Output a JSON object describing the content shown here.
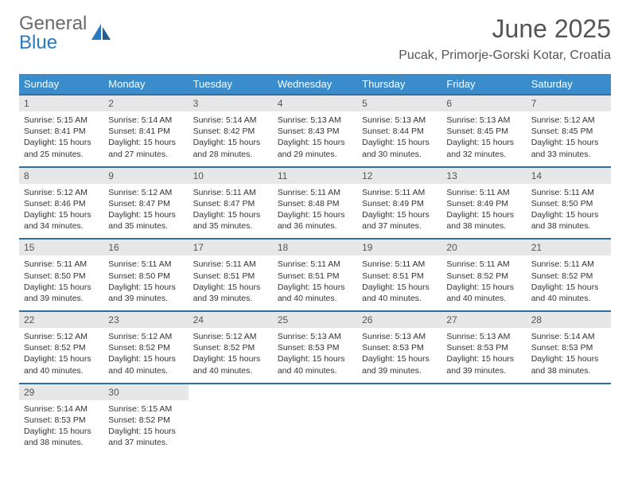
{
  "logo": {
    "general": "General",
    "blue": "Blue"
  },
  "title": "June 2025",
  "location": "Pucak, Primorje-Gorski Kotar, Croatia",
  "columns": [
    "Sunday",
    "Monday",
    "Tuesday",
    "Wednesday",
    "Thursday",
    "Friday",
    "Saturday"
  ],
  "colors": {
    "header_bg": "#3b8ccb",
    "header_text": "#ffffff",
    "row_border": "#2d6fa3",
    "daynum_bg": "#e7e7e7",
    "body_text": "#333333",
    "title_text": "#555555",
    "logo_gray": "#6a6a6a",
    "logo_blue": "#2a7ac0",
    "background": "#ffffff"
  },
  "typography": {
    "month_title_pt": 32,
    "location_pt": 16,
    "column_header_pt": 13,
    "daynum_pt": 12,
    "cell_body_pt": 10.5,
    "logo_pt": 24
  },
  "weeks": [
    [
      {
        "n": "1",
        "sunrise": "5:15 AM",
        "sunset": "8:41 PM",
        "daylight": "15 hours and 25 minutes."
      },
      {
        "n": "2",
        "sunrise": "5:14 AM",
        "sunset": "8:41 PM",
        "daylight": "15 hours and 27 minutes."
      },
      {
        "n": "3",
        "sunrise": "5:14 AM",
        "sunset": "8:42 PM",
        "daylight": "15 hours and 28 minutes."
      },
      {
        "n": "4",
        "sunrise": "5:13 AM",
        "sunset": "8:43 PM",
        "daylight": "15 hours and 29 minutes."
      },
      {
        "n": "5",
        "sunrise": "5:13 AM",
        "sunset": "8:44 PM",
        "daylight": "15 hours and 30 minutes."
      },
      {
        "n": "6",
        "sunrise": "5:13 AM",
        "sunset": "8:45 PM",
        "daylight": "15 hours and 32 minutes."
      },
      {
        "n": "7",
        "sunrise": "5:12 AM",
        "sunset": "8:45 PM",
        "daylight": "15 hours and 33 minutes."
      }
    ],
    [
      {
        "n": "8",
        "sunrise": "5:12 AM",
        "sunset": "8:46 PM",
        "daylight": "15 hours and 34 minutes."
      },
      {
        "n": "9",
        "sunrise": "5:12 AM",
        "sunset": "8:47 PM",
        "daylight": "15 hours and 35 minutes."
      },
      {
        "n": "10",
        "sunrise": "5:11 AM",
        "sunset": "8:47 PM",
        "daylight": "15 hours and 35 minutes."
      },
      {
        "n": "11",
        "sunrise": "5:11 AM",
        "sunset": "8:48 PM",
        "daylight": "15 hours and 36 minutes."
      },
      {
        "n": "12",
        "sunrise": "5:11 AM",
        "sunset": "8:49 PM",
        "daylight": "15 hours and 37 minutes."
      },
      {
        "n": "13",
        "sunrise": "5:11 AM",
        "sunset": "8:49 PM",
        "daylight": "15 hours and 38 minutes."
      },
      {
        "n": "14",
        "sunrise": "5:11 AM",
        "sunset": "8:50 PM",
        "daylight": "15 hours and 38 minutes."
      }
    ],
    [
      {
        "n": "15",
        "sunrise": "5:11 AM",
        "sunset": "8:50 PM",
        "daylight": "15 hours and 39 minutes."
      },
      {
        "n": "16",
        "sunrise": "5:11 AM",
        "sunset": "8:50 PM",
        "daylight": "15 hours and 39 minutes."
      },
      {
        "n": "17",
        "sunrise": "5:11 AM",
        "sunset": "8:51 PM",
        "daylight": "15 hours and 39 minutes."
      },
      {
        "n": "18",
        "sunrise": "5:11 AM",
        "sunset": "8:51 PM",
        "daylight": "15 hours and 40 minutes."
      },
      {
        "n": "19",
        "sunrise": "5:11 AM",
        "sunset": "8:51 PM",
        "daylight": "15 hours and 40 minutes."
      },
      {
        "n": "20",
        "sunrise": "5:11 AM",
        "sunset": "8:52 PM",
        "daylight": "15 hours and 40 minutes."
      },
      {
        "n": "21",
        "sunrise": "5:11 AM",
        "sunset": "8:52 PM",
        "daylight": "15 hours and 40 minutes."
      }
    ],
    [
      {
        "n": "22",
        "sunrise": "5:12 AM",
        "sunset": "8:52 PM",
        "daylight": "15 hours and 40 minutes."
      },
      {
        "n": "23",
        "sunrise": "5:12 AM",
        "sunset": "8:52 PM",
        "daylight": "15 hours and 40 minutes."
      },
      {
        "n": "24",
        "sunrise": "5:12 AM",
        "sunset": "8:52 PM",
        "daylight": "15 hours and 40 minutes."
      },
      {
        "n": "25",
        "sunrise": "5:13 AM",
        "sunset": "8:53 PM",
        "daylight": "15 hours and 40 minutes."
      },
      {
        "n": "26",
        "sunrise": "5:13 AM",
        "sunset": "8:53 PM",
        "daylight": "15 hours and 39 minutes."
      },
      {
        "n": "27",
        "sunrise": "5:13 AM",
        "sunset": "8:53 PM",
        "daylight": "15 hours and 39 minutes."
      },
      {
        "n": "28",
        "sunrise": "5:14 AM",
        "sunset": "8:53 PM",
        "daylight": "15 hours and 38 minutes."
      }
    ],
    [
      {
        "n": "29",
        "sunrise": "5:14 AM",
        "sunset": "8:53 PM",
        "daylight": "15 hours and 38 minutes."
      },
      {
        "n": "30",
        "sunrise": "5:15 AM",
        "sunset": "8:52 PM",
        "daylight": "15 hours and 37 minutes."
      },
      null,
      null,
      null,
      null,
      null
    ]
  ],
  "labels": {
    "sunrise": "Sunrise: ",
    "sunset": "Sunset: ",
    "daylight": "Daylight: "
  }
}
